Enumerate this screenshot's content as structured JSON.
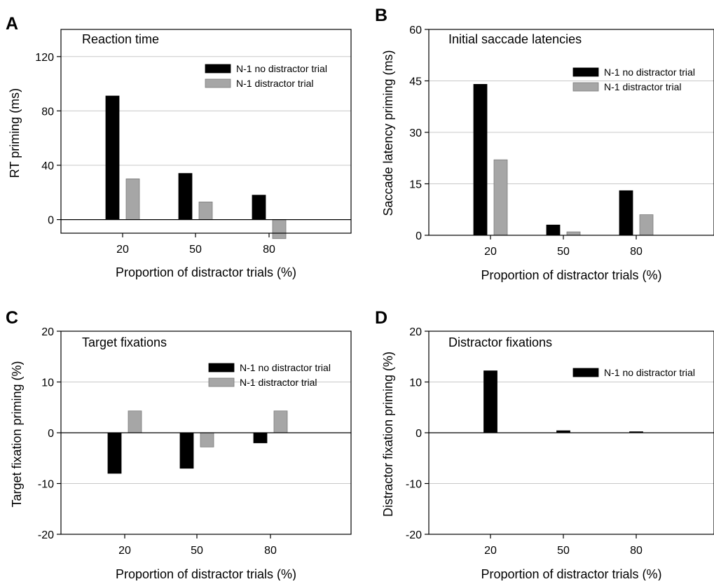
{
  "chart_data": [
    {
      "type": "bar",
      "panel": "A",
      "title": "Reaction time",
      "xlabel": "Proportion of distractor trials (%)",
      "ylabel": "RT priming (ms)",
      "categories": [
        "20",
        "50",
        "80"
      ],
      "ylim": [
        -10,
        140
      ],
      "yticks": [
        "0",
        "40",
        "80",
        "120"
      ],
      "grid": true,
      "legend_position": "top-right",
      "series": [
        {
          "name": "N-1 no distractor trial",
          "color": "#000000",
          "values": [
            91,
            34,
            18
          ]
        },
        {
          "name": "N-1 distractor trial",
          "color": "#a6a6a6",
          "values": [
            30,
            13,
            -14
          ]
        }
      ]
    },
    {
      "type": "bar",
      "panel": "B",
      "title": "Initial saccade latencies",
      "xlabel": "Proportion of distractor trials (%)",
      "ylabel": "Saccade latency priming (ms)",
      "categories": [
        "20",
        "50",
        "80"
      ],
      "ylim": [
        0,
        60
      ],
      "yticks": [
        "0",
        "15",
        "30",
        "45",
        "60"
      ],
      "grid": true,
      "legend_position": "top-right",
      "series": [
        {
          "name": "N-1 no distractor trial",
          "color": "#000000",
          "values": [
            44,
            3,
            13
          ]
        },
        {
          "name": "N-1 distractor trial",
          "color": "#a6a6a6",
          "values": [
            22,
            1,
            6
          ]
        }
      ]
    },
    {
      "type": "bar",
      "panel": "C",
      "title": "Target fixations",
      "xlabel": "Proportion of distractor trials (%)",
      "ylabel": "Target fixation priming (%)",
      "categories": [
        "20",
        "50",
        "80"
      ],
      "ylim": [
        -20,
        20
      ],
      "yticks": [
        "-20",
        "-10",
        "0",
        "10",
        "20"
      ],
      "grid": true,
      "legend_position": "top-right",
      "series": [
        {
          "name": "N-1 no distractor trial",
          "color": "#000000",
          "values": [
            -8,
            -7,
            -2
          ]
        },
        {
          "name": "N-1 distractor trial",
          "color": "#a6a6a6",
          "values": [
            4.3,
            -2.8,
            4.3
          ]
        }
      ]
    },
    {
      "type": "bar",
      "panel": "D",
      "title": "Distractor fixations",
      "xlabel": "Proportion of distractor trials (%)",
      "ylabel": "Distractor fixation priming (%)",
      "categories": [
        "20",
        "50",
        "80"
      ],
      "ylim": [
        -20,
        20
      ],
      "yticks": [
        "-20",
        "-10",
        "0",
        "10",
        "20"
      ],
      "grid": true,
      "legend_position": "top-right",
      "series": [
        {
          "name": "N-1 no distractor trial",
          "color": "#000000",
          "values": [
            12.2,
            0.4,
            0.2
          ]
        }
      ]
    }
  ]
}
